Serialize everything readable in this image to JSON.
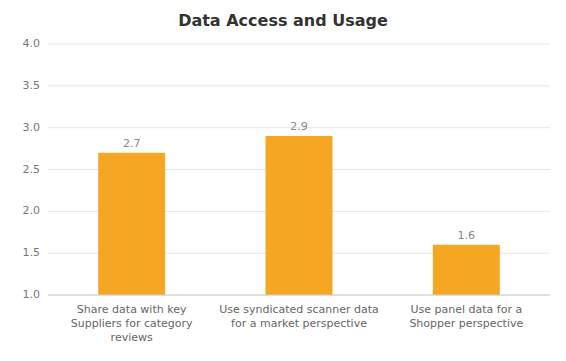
{
  "chart_data": {
    "type": "bar",
    "title": "Data Access and Usage",
    "categories": [
      "Share data with key\nSuppliers for category\nreviews",
      "Use syndicated scanner data\nfor a market perspective",
      "Use panel data for a\nShopper perspective"
    ],
    "values": [
      2.7,
      2.9,
      1.6
    ],
    "color": "#F5A623",
    "ylim": [
      1.0,
      4.0
    ],
    "yticks": [
      {
        "value": 1.0,
        "label": "1.0"
      },
      1.5,
      {
        "value": 2.0,
        "label": "2.0"
      },
      2.5,
      {
        "value": 3.0,
        "label": "3.0"
      },
      3.5,
      {
        "value": 4.0,
        "label": "4.0"
      }
    ],
    "grid": true,
    "data_labels": true
  }
}
